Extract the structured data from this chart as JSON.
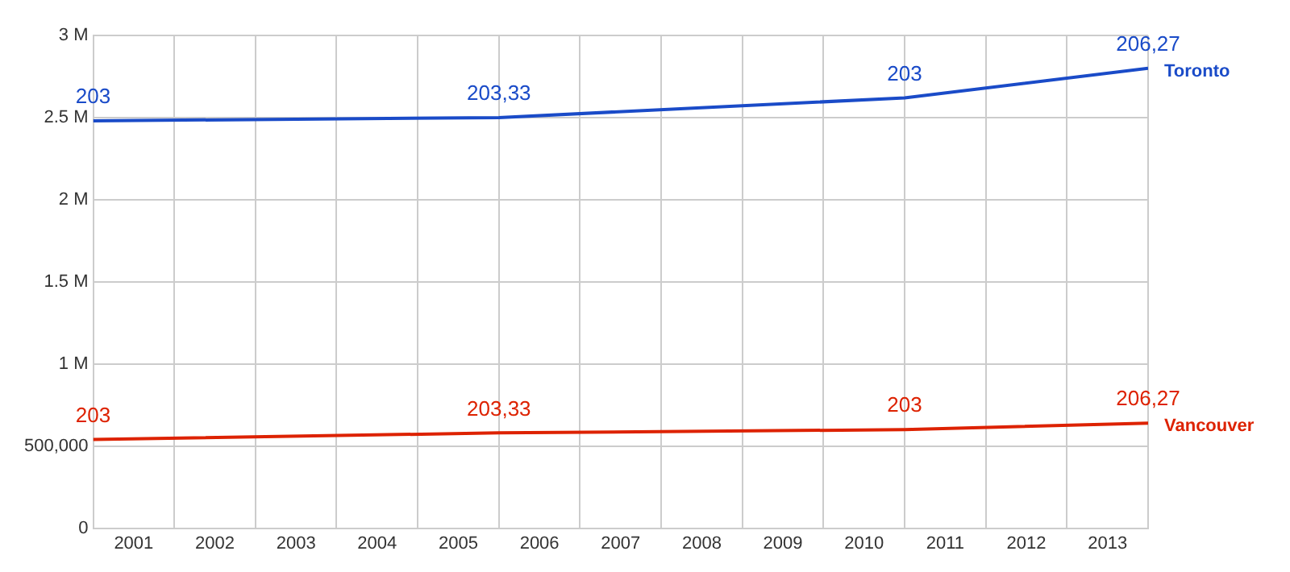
{
  "chart_data": {
    "type": "line",
    "x": [
      2001,
      2006,
      2011,
      2014
    ],
    "xlim": [
      2001,
      2014
    ],
    "xticks": [
      {
        "value": 2001,
        "label": null
      },
      {
        "value": 2001.5,
        "label": "2001"
      },
      {
        "value": 2002,
        "label": null
      },
      {
        "value": 2002.5,
        "label": "2002"
      },
      {
        "value": 2003,
        "label": null
      },
      {
        "value": 2003.5,
        "label": "2003"
      },
      {
        "value": 2004,
        "label": null
      },
      {
        "value": 2004.5,
        "label": "2004"
      },
      {
        "value": 2005,
        "label": null
      },
      {
        "value": 2005.5,
        "label": "2005"
      },
      {
        "value": 2006,
        "label": null
      },
      {
        "value": 2006.5,
        "label": "2006"
      },
      {
        "value": 2007,
        "label": null
      },
      {
        "value": 2007.5,
        "label": "2007"
      },
      {
        "value": 2008,
        "label": null
      },
      {
        "value": 2008.5,
        "label": "2008"
      },
      {
        "value": 2009,
        "label": null
      },
      {
        "value": 2009.5,
        "label": "2009"
      },
      {
        "value": 2010,
        "label": null
      },
      {
        "value": 2010.5,
        "label": "2010"
      },
      {
        "value": 2011,
        "label": null
      },
      {
        "value": 2011.5,
        "label": "2011"
      },
      {
        "value": 2012,
        "label": null
      },
      {
        "value": 2012.5,
        "label": "2012"
      },
      {
        "value": 2013,
        "label": null
      },
      {
        "value": 2013.5,
        "label": "2013"
      },
      {
        "value": 2014,
        "label": null
      }
    ],
    "ylim": [
      0,
      3000000
    ],
    "yticks": [
      0,
      {
        "value": 500000,
        "label": "500,000"
      },
      {
        "value": 1000000,
        "label": "1 M"
      },
      {
        "value": 1500000,
        "label": "1.5 M"
      },
      {
        "value": 2000000,
        "label": "2 M"
      },
      {
        "value": 2500000,
        "label": "2.5 M"
      },
      {
        "value": 3000000,
        "label": "3 M"
      }
    ],
    "grid": true,
    "marker": "none",
    "series": [
      {
        "name": "Toronto",
        "color": "#1a4bc8",
        "values": [
          2480000,
          2500000,
          2620000,
          2800000
        ]
      },
      {
        "name": "Vancouver",
        "color": "#dd2200",
        "values": [
          540000,
          580000,
          600000,
          640000
        ]
      }
    ],
    "annotations": [
      {
        "text": "203",
        "x": 2001,
        "y": 2480000
      },
      {
        "text": "203,33",
        "x": 2006,
        "y": 2500000
      },
      {
        "text": "203",
        "x": 2011,
        "y": 2620000
      },
      {
        "text": "206,27",
        "x": 2014,
        "y": 2800000
      },
      {
        "text": "203",
        "x": 2001,
        "y": 540000
      },
      {
        "text": "203,33",
        "x": 2006,
        "y": 580000
      },
      {
        "text": "203",
        "x": 2011,
        "y": 600000
      },
      {
        "text": "206,27",
        "x": 2014,
        "y": 640000
      }
    ]
  }
}
